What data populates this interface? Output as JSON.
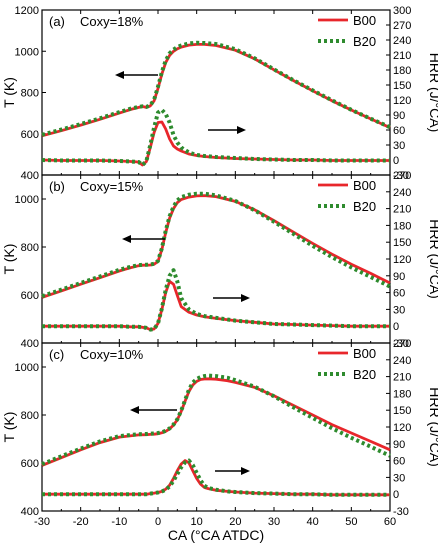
{
  "chart_data": [
    {
      "type": "line",
      "panel_label": "(a)",
      "annotation": "Coxy=18%",
      "x": [
        -30,
        -25,
        -20,
        -15,
        -10,
        -7,
        -5,
        -4,
        -3,
        -2,
        -1,
        0,
        1,
        2,
        3,
        4,
        5,
        6,
        8,
        10,
        12,
        15,
        20,
        25,
        30,
        35,
        40,
        45,
        50,
        55,
        60
      ],
      "series": [
        {
          "name": "B00",
          "axis": "left",
          "color": "#e8262b",
          "style": "solid",
          "values": [
            590,
            615,
            642,
            670,
            700,
            718,
            728,
            732,
            728,
            735,
            760,
            820,
            890,
            945,
            980,
            1000,
            1012,
            1020,
            1030,
            1033,
            1033,
            1028,
            1005,
            963,
            910,
            858,
            808,
            760,
            715,
            672,
            630
          ]
        },
        {
          "name": "B20",
          "axis": "left",
          "color": "#2e8b2e",
          "style": "dotted",
          "values": [
            595,
            620,
            647,
            675,
            705,
            722,
            730,
            733,
            730,
            738,
            765,
            828,
            900,
            955,
            990,
            1008,
            1020,
            1028,
            1038,
            1041,
            1040,
            1035,
            1010,
            966,
            912,
            860,
            810,
            762,
            716,
            673,
            632
          ]
        },
        {
          "name": "B00",
          "axis": "right",
          "color": "#e8262b",
          "style": "solid",
          "values": [
            0,
            -1,
            -1,
            -1,
            -2,
            -3,
            -4,
            -10,
            -3,
            25,
            55,
            75,
            76,
            62,
            42,
            28,
            22,
            18,
            12,
            9,
            7,
            5,
            3,
            2,
            1,
            0,
            0,
            -1,
            -1,
            -1,
            -1
          ]
        },
        {
          "name": "B20",
          "axis": "right",
          "color": "#2e8b2e",
          "style": "dotted",
          "values": [
            0,
            -1,
            -1,
            -1,
            -2,
            -3,
            -4,
            -10,
            -2,
            30,
            65,
            95,
            100,
            92,
            75,
            50,
            35,
            25,
            15,
            10,
            8,
            6,
            4,
            2,
            1,
            0,
            0,
            -1,
            -1,
            -1,
            -1
          ]
        }
      ],
      "xlim": [
        -30,
        60
      ],
      "ylim_left": [
        400,
        1200
      ],
      "ylim_right": [
        -30,
        300
      ],
      "left_ticks": [
        400,
        600,
        800,
        1000,
        1200
      ],
      "right_ticks": [
        -30,
        0,
        30,
        60,
        90,
        120,
        150,
        180,
        210,
        240,
        270,
        300
      ]
    },
    {
      "type": "line",
      "panel_label": "(b)",
      "annotation": "Coxy=15%",
      "x": [
        -30,
        -25,
        -20,
        -15,
        -10,
        -7,
        -5,
        -4,
        -3,
        -2,
        -1,
        0,
        1,
        2,
        3,
        4,
        5,
        6,
        8,
        10,
        12,
        15,
        20,
        25,
        30,
        35,
        40,
        45,
        50,
        55,
        60
      ],
      "series": [
        {
          "name": "B00",
          "axis": "left",
          "color": "#e8262b",
          "style": "solid",
          "values": [
            590,
            617,
            645,
            672,
            700,
            714,
            722,
            724,
            724,
            725,
            728,
            740,
            790,
            860,
            920,
            960,
            985,
            998,
            1008,
            1013,
            1014,
            1010,
            990,
            955,
            910,
            862,
            815,
            770,
            728,
            690,
            650
          ]
        },
        {
          "name": "B20",
          "axis": "left",
          "color": "#2e8b2e",
          "style": "dotted",
          "values": [
            595,
            622,
            650,
            677,
            705,
            718,
            724,
            726,
            726,
            727,
            730,
            742,
            795,
            868,
            928,
            968,
            994,
            1008,
            1018,
            1022,
            1022,
            1015,
            992,
            953,
            905,
            855,
            805,
            758,
            715,
            675,
            635
          ]
        },
        {
          "name": "B00",
          "axis": "right",
          "color": "#e8262b",
          "style": "solid",
          "values": [
            0,
            0,
            0,
            0,
            0,
            -1,
            -1,
            -2,
            -3,
            -6,
            -5,
            5,
            30,
            60,
            80,
            75,
            55,
            35,
            25,
            20,
            17,
            14,
            10,
            7,
            4,
            3,
            2,
            1,
            0,
            0,
            0
          ]
        },
        {
          "name": "B20",
          "axis": "right",
          "color": "#2e8b2e",
          "style": "dotted",
          "values": [
            0,
            0,
            0,
            0,
            0,
            -1,
            -1,
            -2,
            -3,
            -6,
            -5,
            5,
            32,
            65,
            90,
            100,
            80,
            50,
            30,
            22,
            18,
            15,
            10,
            7,
            4,
            3,
            2,
            1,
            0,
            0,
            0
          ]
        }
      ],
      "xlim": [
        -30,
        60
      ],
      "ylim_left": [
        400,
        1100
      ],
      "ylim_right": [
        -30,
        270
      ],
      "left_ticks": [
        400,
        600,
        800,
        1000
      ],
      "right_ticks": [
        -30,
        0,
        30,
        60,
        90,
        120,
        150,
        180,
        210,
        240,
        270
      ]
    },
    {
      "type": "line",
      "panel_label": "(c)",
      "annotation": "Coxy=10%",
      "x": [
        -30,
        -25,
        -20,
        -15,
        -10,
        -5,
        -3,
        -2,
        -1,
        0,
        1,
        2,
        3,
        4,
        5,
        6,
        7,
        8,
        9,
        10,
        11,
        12,
        13,
        15,
        18,
        20,
        25,
        30,
        35,
        40,
        45,
        50,
        55,
        60
      ],
      "series": [
        {
          "name": "B00",
          "axis": "left",
          "color": "#e8262b",
          "style": "solid",
          "values": [
            590,
            622,
            655,
            685,
            708,
            717,
            718,
            719,
            720,
            722,
            726,
            732,
            742,
            758,
            780,
            815,
            858,
            898,
            925,
            940,
            948,
            950,
            951,
            949,
            943,
            936,
            915,
            880,
            840,
            800,
            760,
            725,
            690,
            655
          ]
        },
        {
          "name": "B20",
          "axis": "left",
          "color": "#2e8b2e",
          "style": "dotted",
          "values": [
            595,
            628,
            660,
            690,
            712,
            720,
            721,
            722,
            723,
            725,
            728,
            734,
            744,
            760,
            782,
            818,
            862,
            905,
            935,
            950,
            958,
            962,
            964,
            962,
            955,
            945,
            918,
            878,
            832,
            788,
            745,
            705,
            668,
            630
          ]
        },
        {
          "name": "B00",
          "axis": "right",
          "color": "#e8262b",
          "style": "solid",
          "values": [
            0,
            0,
            0,
            0,
            0,
            0,
            0,
            1,
            2,
            3,
            5,
            9,
            16,
            28,
            42,
            54,
            60,
            56,
            42,
            28,
            18,
            12,
            10,
            7,
            5,
            4,
            2,
            1,
            0,
            0,
            -1,
            -1,
            -1,
            -1
          ]
        },
        {
          "name": "B20",
          "axis": "right",
          "color": "#2e8b2e",
          "style": "dotted",
          "values": [
            0,
            0,
            0,
            0,
            0,
            0,
            0,
            1,
            2,
            3,
            5,
            8,
            14,
            24,
            36,
            48,
            57,
            60,
            52,
            38,
            25,
            15,
            11,
            8,
            5,
            4,
            2,
            1,
            0,
            0,
            -1,
            -1,
            -1,
            -1
          ]
        }
      ],
      "xlim": [
        -30,
        60
      ],
      "ylim_left": [
        400,
        1100
      ],
      "ylim_right": [
        -30,
        270
      ],
      "left_ticks": [
        400,
        600,
        800,
        1000
      ],
      "right_ticks": [
        -30,
        0,
        30,
        60,
        90,
        120,
        150,
        180,
        210,
        240,
        270
      ]
    }
  ],
  "axes": {
    "xlabel": "CA (°CA ATDC)",
    "ylabel_left": "T (K)",
    "ylabel_right": "HRR (J/°CA)",
    "x_ticks": [
      -30,
      -20,
      -10,
      0,
      10,
      20,
      30,
      40,
      50,
      60
    ]
  },
  "legend": {
    "placement": "top-right",
    "entries": [
      {
        "name": "B00",
        "color": "#e8262b",
        "style": "solid"
      },
      {
        "name": "B20",
        "color": "#2e8b2e",
        "style": "dotted"
      }
    ]
  },
  "arrows": [
    "left",
    "right"
  ]
}
